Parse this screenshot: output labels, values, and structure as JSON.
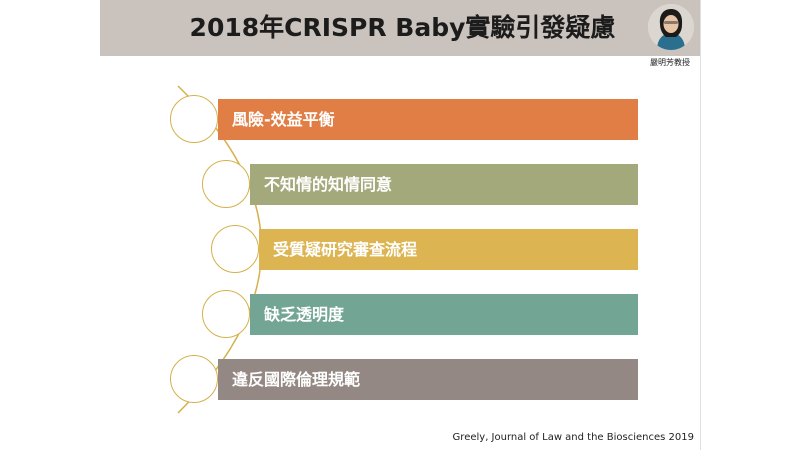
{
  "slide": {
    "title": "2018年CRISPR Baby實驗引發疑慮",
    "presenter_name": "嚴明芳教授",
    "citation": "Greely, Journal of Law and the Biosciences 2019"
  },
  "items": [
    {
      "label": "風險-效益平衡",
      "color": "#e07e45"
    },
    {
      "label": "不知情的知情同意",
      "color": "#a3a97a"
    },
    {
      "label": "受質疑研究審查流程",
      "color": "#dcb552"
    },
    {
      "label": "缺乏透明度",
      "color": "#73a594"
    },
    {
      "label": "違反國際倫理規範",
      "color": "#948884"
    }
  ],
  "colors": {
    "title_bar": "#c9c2bd",
    "arc": "#d4b14a"
  }
}
